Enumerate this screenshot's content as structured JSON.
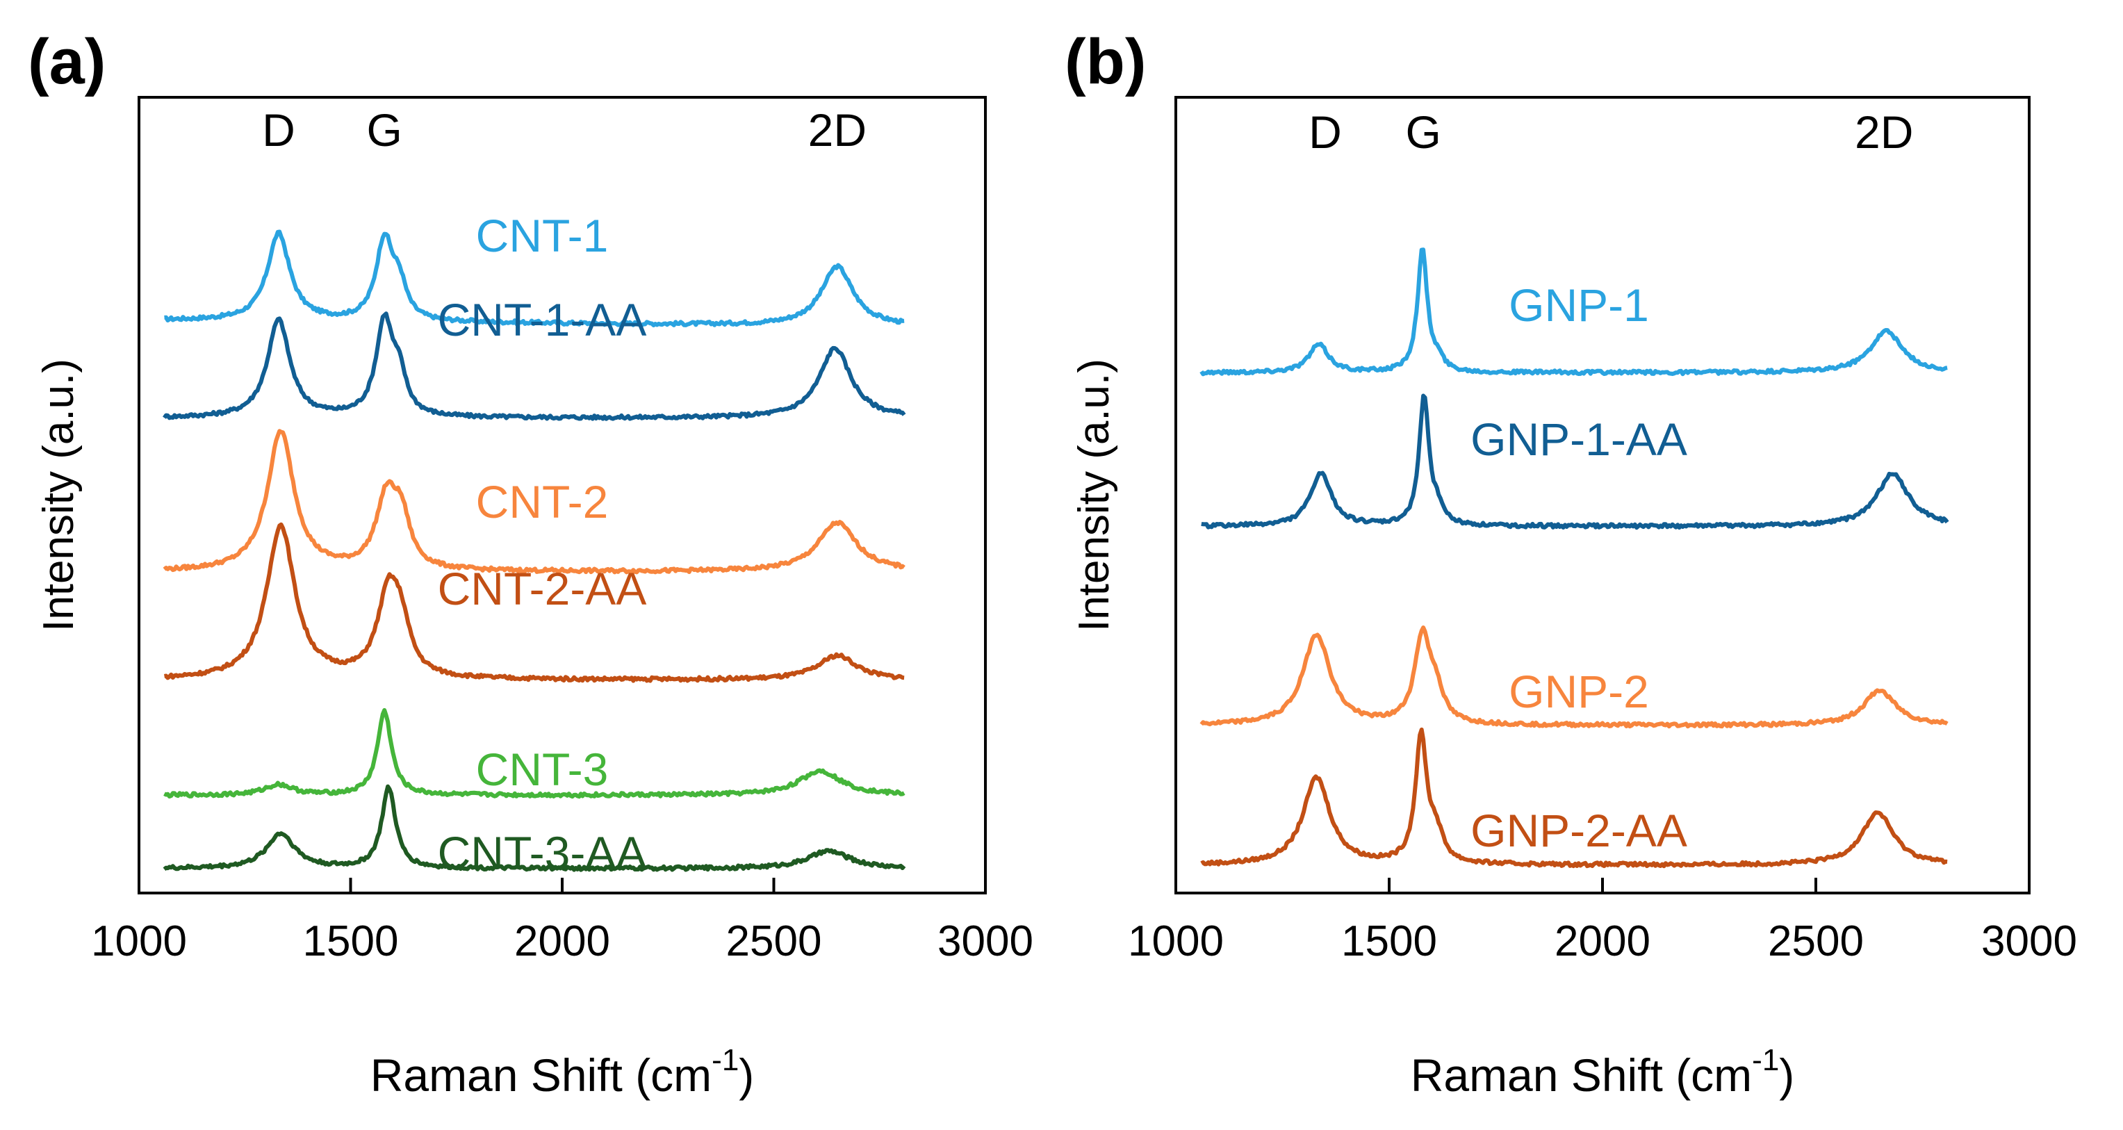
{
  "chart_data": [
    {
      "panel_label": "(a)",
      "type": "line",
      "xlabel": "Raman Shift (cm",
      "xlabel_sup": "-1",
      "xlabel_end": ")",
      "ylabel": "Intensity (a.u.)",
      "xlim": [
        1000,
        3000
      ],
      "xticks": [
        1000,
        1500,
        2000,
        2500,
        3000
      ],
      "yticks": "none",
      "grid": false,
      "peaks": [
        {
          "label": "D",
          "x": 1330
        },
        {
          "label": "G",
          "x": 1580
        },
        {
          "label": "2D",
          "x": 2650
        }
      ],
      "series": [
        {
          "name": "CNT-1",
          "color": "#2aa3e0",
          "baseline": 8.0,
          "slope": -0.05,
          "peaks": [
            [
              1330,
              1.25,
              32
            ],
            [
              1580,
              1.15,
              24
            ],
            [
              1615,
              0.45,
              20
            ],
            [
              2650,
              0.85,
              45
            ]
          ]
        },
        {
          "name": "CNT-1-AA",
          "color": "#115e93",
          "baseline": 6.6,
          "slope": 0,
          "peaks": [
            [
              1330,
              1.4,
              32
            ],
            [
              1580,
              1.35,
              24
            ],
            [
              1615,
              0.5,
              20
            ],
            [
              2645,
              1.0,
              45
            ]
          ]
        },
        {
          "name": "CNT-2",
          "color": "#f7853d",
          "baseline": 4.4,
          "slope": 0,
          "peaks": [
            [
              1335,
              2.0,
              38
            ],
            [
              1585,
              1.0,
              30
            ],
            [
              1620,
              0.65,
              25
            ],
            [
              2650,
              0.7,
              55
            ]
          ]
        },
        {
          "name": "CNT-2-AA",
          "color": "#c24f14",
          "baseline": 2.85,
          "slope": 0,
          "peaks": [
            [
              1335,
              2.2,
              40
            ],
            [
              1590,
              1.2,
              32
            ],
            [
              1620,
              0.55,
              25
            ],
            [
              2650,
              0.35,
              55
            ]
          ]
        },
        {
          "name": "CNT-3",
          "color": "#45b53a",
          "baseline": 1.2,
          "slope": 0,
          "peaks": [
            [
              1330,
              0.15,
              40
            ],
            [
              1580,
              1.2,
              20
            ],
            [
              2610,
              0.35,
              60
            ]
          ]
        },
        {
          "name": "CNT-3-AA",
          "color": "#1f5a22",
          "baseline": 0.15,
          "slope": 0,
          "peaks": [
            [
              1335,
              0.5,
              40
            ],
            [
              1590,
              1.15,
              20
            ],
            [
              2630,
              0.25,
              60
            ]
          ]
        }
      ]
    },
    {
      "panel_label": "(b)",
      "type": "line",
      "xlabel": "Raman Shift (cm",
      "xlabel_sup": "-1",
      "xlabel_end": ")",
      "ylabel": "Intensity (a.u.)",
      "xlim": [
        1000,
        3000
      ],
      "xticks": [
        1000,
        1500,
        2000,
        2500,
        3000
      ],
      "yticks": "none",
      "grid": false,
      "peaks": [
        {
          "label": "D",
          "x": 1350
        },
        {
          "label": "G",
          "x": 1580
        },
        {
          "label": "2D",
          "x": 2660
        }
      ],
      "series": [
        {
          "name": "GNP-1",
          "color": "#2aa3e0",
          "baseline": 7.25,
          "slope": 0,
          "peaks": [
            [
              1335,
              0.4,
              28
            ],
            [
              1578,
              1.75,
              14
            ],
            [
              1615,
              0.15,
              15
            ],
            [
              2665,
              0.6,
              45
            ]
          ]
        },
        {
          "name": "GNP-1-AA",
          "color": "#115e93",
          "baseline": 5.05,
          "slope": 0,
          "peaks": [
            [
              1340,
              0.75,
              30
            ],
            [
              1582,
              1.85,
              14
            ],
            [
              1615,
              0.2,
              15
            ],
            [
              2680,
              0.75,
              45
            ]
          ]
        },
        {
          "name": "GNP-2",
          "color": "#f7853d",
          "baseline": 2.2,
          "slope": 0,
          "peaks": [
            [
              1330,
              1.3,
              38
            ],
            [
              1578,
              1.25,
              22
            ],
            [
              1610,
              0.4,
              20
            ],
            [
              2650,
              0.5,
              45
            ]
          ]
        },
        {
          "name": "GNP-2-AA",
          "color": "#c24f14",
          "baseline": 0.2,
          "slope": 0,
          "peaks": [
            [
              1330,
              1.25,
              38
            ],
            [
              1575,
              1.8,
              16
            ],
            [
              1610,
              0.4,
              20
            ],
            [
              2645,
              0.75,
              45
            ]
          ]
        }
      ]
    }
  ]
}
